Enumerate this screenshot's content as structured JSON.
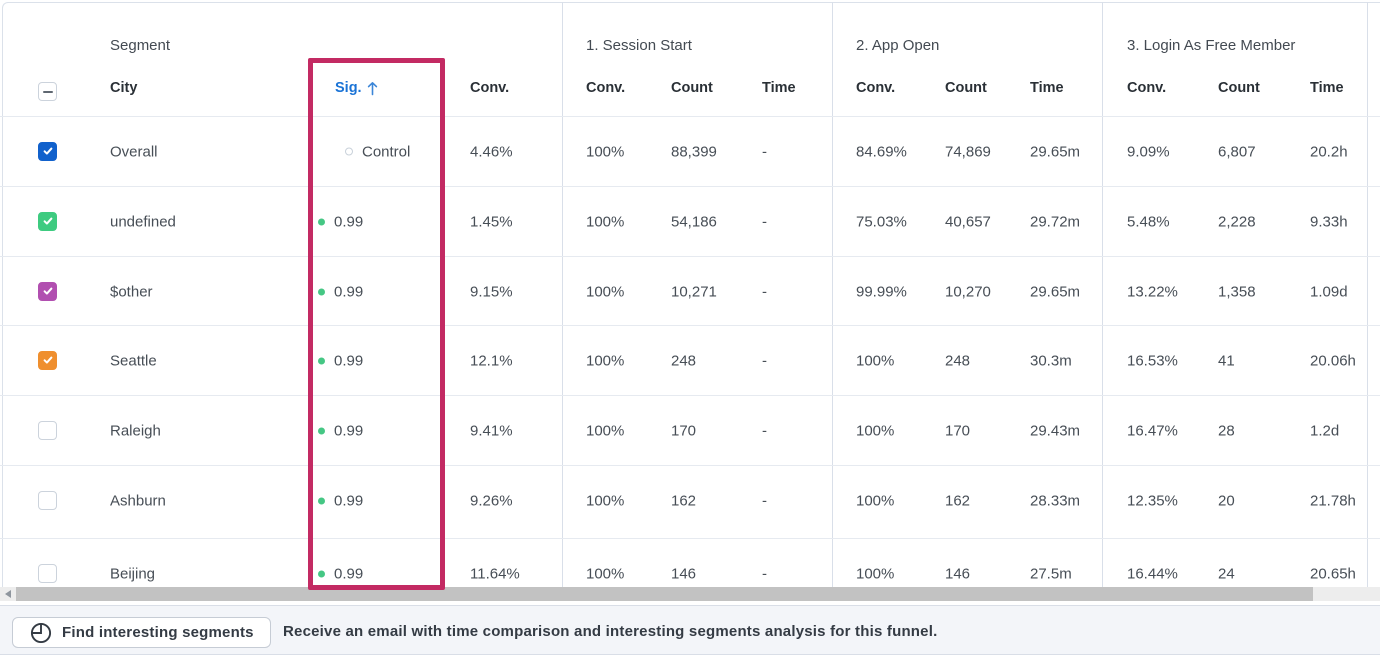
{
  "header": {
    "segment_group_label": "Segment",
    "select_all_state": "indeterminate",
    "columns": {
      "city": "City",
      "sig": "Sig.",
      "sig_sort_arrow": "↑",
      "conv": "Conv."
    },
    "sig_header_color": "#1a73d6",
    "steps": [
      "1. Session Start",
      "2. App Open",
      "3. Login As Free Member"
    ],
    "step_columns": [
      "Conv.",
      "Count",
      "Time"
    ]
  },
  "table": {
    "rows": [
      {
        "city": "Overall",
        "checked": true,
        "checkbox_color": "#1161cc",
        "sig": {
          "type": "control",
          "label": "Control"
        },
        "conv": "4.46%",
        "steps": [
          {
            "conv": "100%",
            "count": "88,399",
            "time": "-"
          },
          {
            "conv": "84.69%",
            "count": "74,869",
            "time": "29.65m"
          },
          {
            "conv": "9.09%",
            "count": "6,807",
            "time": "20.2h"
          }
        ]
      },
      {
        "city": "undefined",
        "checked": true,
        "checkbox_color": "#3ecb80",
        "sig": {
          "type": "value",
          "label": "0.99"
        },
        "conv": "1.45%",
        "steps": [
          {
            "conv": "100%",
            "count": "54,186",
            "time": "-"
          },
          {
            "conv": "75.03%",
            "count": "40,657",
            "time": "29.72m"
          },
          {
            "conv": "5.48%",
            "count": "2,228",
            "time": "9.33h"
          }
        ]
      },
      {
        "city": "$other",
        "checked": true,
        "checkbox_color": "#b14fb0",
        "sig": {
          "type": "value",
          "label": "0.99"
        },
        "conv": "9.15%",
        "steps": [
          {
            "conv": "100%",
            "count": "10,271",
            "time": "-"
          },
          {
            "conv": "99.99%",
            "count": "10,270",
            "time": "29.65m"
          },
          {
            "conv": "13.22%",
            "count": "1,358",
            "time": "1.09d"
          }
        ]
      },
      {
        "city": "Seattle",
        "checked": true,
        "checkbox_color": "#ef8f2e",
        "sig": {
          "type": "value",
          "label": "0.99"
        },
        "conv": "12.1%",
        "steps": [
          {
            "conv": "100%",
            "count": "248",
            "time": "-"
          },
          {
            "conv": "100%",
            "count": "248",
            "time": "30.3m"
          },
          {
            "conv": "16.53%",
            "count": "41",
            "time": "20.06h"
          }
        ]
      },
      {
        "city": "Raleigh",
        "checked": false,
        "checkbox_color": "",
        "sig": {
          "type": "value",
          "label": "0.99"
        },
        "conv": "9.41%",
        "steps": [
          {
            "conv": "100%",
            "count": "170",
            "time": "-"
          },
          {
            "conv": "100%",
            "count": "170",
            "time": "29.43m"
          },
          {
            "conv": "16.47%",
            "count": "28",
            "time": "1.2d"
          }
        ]
      },
      {
        "city": "Ashburn",
        "checked": false,
        "checkbox_color": "",
        "sig": {
          "type": "value",
          "label": "0.99"
        },
        "conv": "9.26%",
        "steps": [
          {
            "conv": "100%",
            "count": "162",
            "time": "-"
          },
          {
            "conv": "100%",
            "count": "162",
            "time": "28.33m"
          },
          {
            "conv": "12.35%",
            "count": "20",
            "time": "21.78h"
          }
        ]
      },
      {
        "city": "Beijing",
        "checked": false,
        "checkbox_color": "",
        "sig": {
          "type": "value",
          "label": "0.99"
        },
        "conv": "11.64%",
        "steps": [
          {
            "conv": "100%",
            "count": "146",
            "time": "-"
          },
          {
            "conv": "100%",
            "count": "146",
            "time": "27.5m"
          },
          {
            "conv": "16.44%",
            "count": "24",
            "time": "20.65h"
          }
        ]
      }
    ],
    "sig_dot_color": "#45c784"
  },
  "annotation": {
    "highlight_color": "#c32a63",
    "highlighted_column": "Sig."
  },
  "footer": {
    "button_label": "Find interesting segments",
    "message": "Receive an email with time comparison and interesting segments analysis for this funnel."
  }
}
